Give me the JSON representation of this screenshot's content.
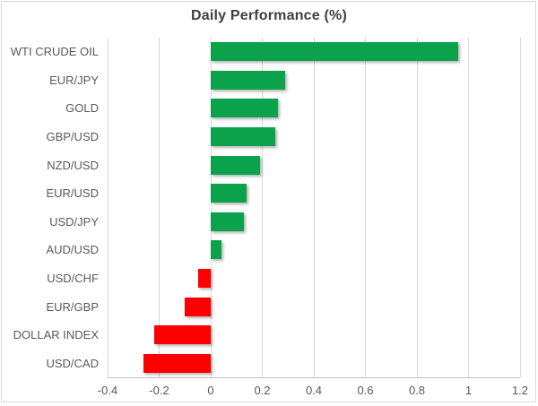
{
  "chart_data": {
    "type": "bar",
    "orientation": "horizontal",
    "title": "Daily Performance (%)",
    "categories": [
      "WTI CRUDE OIL",
      "EUR/JPY",
      "GOLD",
      "GBP/USD",
      "NZD/USD",
      "EUR/USD",
      "USD/JPY",
      "AUD/USD",
      "USD/CHF",
      "EUR/GBP",
      "DOLLAR INDEX",
      "USD/CAD"
    ],
    "values": [
      0.96,
      0.29,
      0.26,
      0.25,
      0.19,
      0.14,
      0.13,
      0.04,
      -0.05,
      -0.1,
      -0.22,
      -0.26
    ],
    "xlabel": "",
    "ylabel": "",
    "xlim": [
      -0.4,
      1.2
    ],
    "x_ticks": [
      -0.4,
      -0.2,
      0,
      0.2,
      0.4,
      0.6,
      0.8,
      1,
      1.2
    ],
    "x_tick_labels": [
      "-0.4",
      "-0.2",
      "0",
      "0.2",
      "0.4",
      "0.6",
      "0.8",
      "1",
      "1.2"
    ],
    "grid": true,
    "legend": "none",
    "colors": {
      "positive_bar": "#0ca24c",
      "negative_bar": "#fe0000",
      "gridline": "#d9d9d9",
      "axis_line": "#bfbfbf",
      "category_text": "#595959",
      "tick_text": "#595959",
      "title_text": "#3f3f3f",
      "background": "#ffffff",
      "border": "#d9d9d9"
    }
  }
}
